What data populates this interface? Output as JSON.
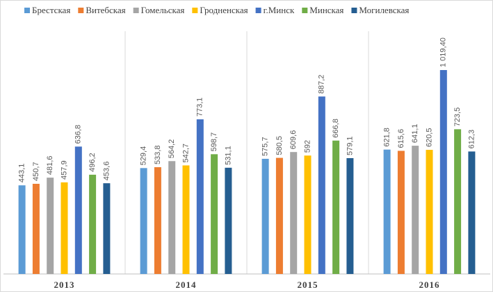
{
  "chart_data": {
    "type": "bar",
    "categories": [
      "2013",
      "2014",
      "2015",
      "2016"
    ],
    "series": [
      {
        "name": "Брестская",
        "color": "#5b9bd5",
        "values": [
          443.1,
          529.4,
          575.7,
          621.8
        ],
        "value_labels": [
          "443,1",
          "529,4",
          "575,7",
          "621,8"
        ]
      },
      {
        "name": "Витебская",
        "color": "#ed7d31",
        "values": [
          450.7,
          533.8,
          580.5,
          615.6
        ],
        "value_labels": [
          "450,7",
          "533,8",
          "580,5",
          "615,6"
        ]
      },
      {
        "name": "Гомельская",
        "color": "#a5a5a5",
        "values": [
          481.6,
          564.2,
          609.6,
          641.1
        ],
        "value_labels": [
          "481,6",
          "564,2",
          "609,6",
          "641,1"
        ]
      },
      {
        "name": "Гродненская",
        "color": "#ffc000",
        "values": [
          457.9,
          542.7,
          592,
          620.5
        ],
        "value_labels": [
          "457,9",
          "542,7",
          "592",
          "620,5"
        ]
      },
      {
        "name": "г.Минск",
        "color": "#4472c4",
        "values": [
          636.8,
          773.1,
          887.2,
          1019.4
        ],
        "value_labels": [
          "636,8",
          "773,1",
          "887,2",
          "1 019,40"
        ]
      },
      {
        "name": "Минская",
        "color": "#70ad47",
        "values": [
          496.2,
          598.7,
          666.8,
          723.5
        ],
        "value_labels": [
          "496,2",
          "598,7",
          "666,8",
          "723,5"
        ]
      },
      {
        "name": "Могилевская",
        "color": "#255e91",
        "values": [
          453.6,
          531.1,
          579.1,
          612.3
        ],
        "value_labels": [
          "453,6",
          "531,1",
          "579,1",
          "612,3"
        ]
      }
    ],
    "legend": "top"
  }
}
